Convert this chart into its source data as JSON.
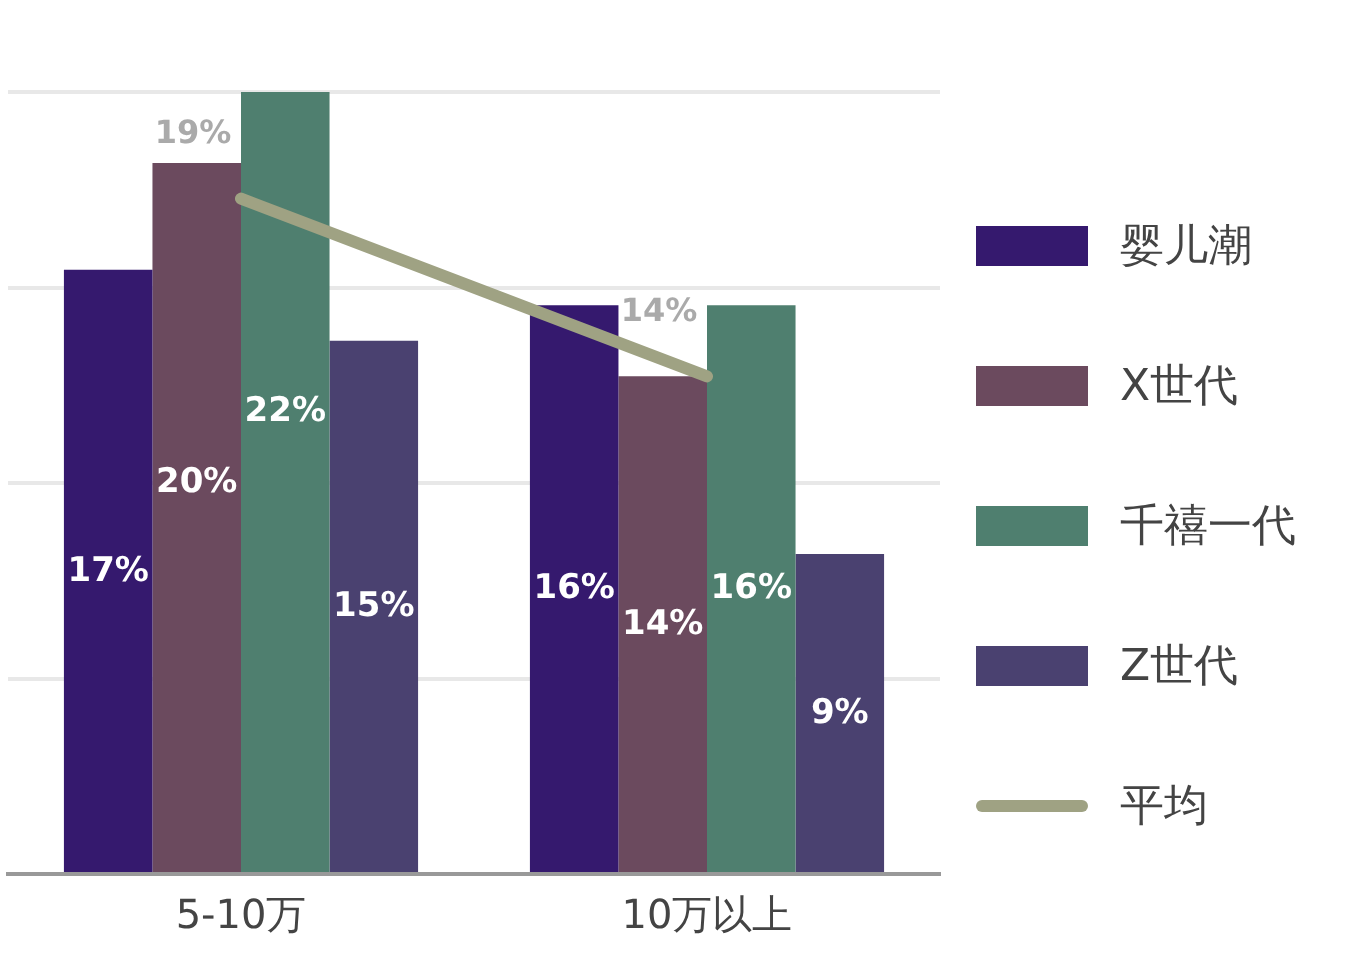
{
  "chart_data": {
    "type": "bar",
    "categories": [
      "5-10万",
      "10万以上"
    ],
    "ylim": [
      0,
      22
    ],
    "yticks": [
      {
        "value": 0,
        "label": null
      },
      {
        "value": 5.5,
        "label": null
      },
      {
        "value": 11,
        "label": null
      },
      {
        "value": 16.5,
        "label": null
      },
      {
        "value": 22,
        "label": null
      }
    ],
    "grid": "y",
    "tick_labels": "x",
    "legend": "right",
    "series": [
      {
        "name": "婴儿潮",
        "color": "#35196e",
        "values": [
          17,
          16
        ],
        "value_labels": [
          "17%",
          "16%"
        ]
      },
      {
        "name": "X世代",
        "color": "#6b4a5e",
        "values": [
          20,
          14
        ],
        "value_labels": [
          "20%",
          "14%"
        ]
      },
      {
        "name": "千禧一代",
        "color": "#4f7f6f",
        "values": [
          22,
          16
        ],
        "value_labels": [
          "22%",
          "16%"
        ]
      },
      {
        "name": "Z世代",
        "color": "#4a4170",
        "values": [
          15,
          9
        ],
        "value_labels": [
          "15%",
          "9%"
        ]
      },
      {
        "name": "平均",
        "type": "line",
        "color": "#9fa283",
        "values": [
          19,
          14
        ],
        "value_labels": [
          "19%",
          "14%"
        ]
      }
    ]
  }
}
